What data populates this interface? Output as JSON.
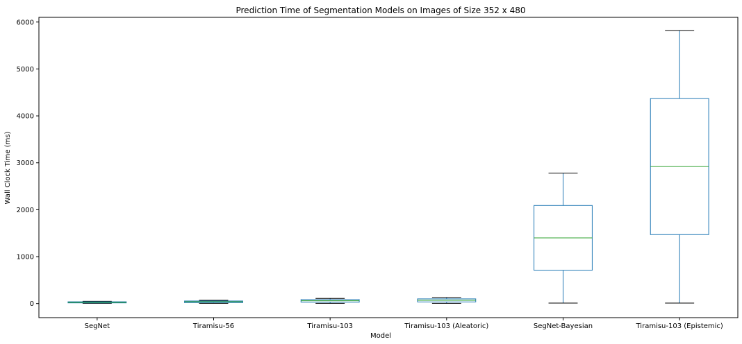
{
  "chart_data": {
    "type": "box",
    "title": "Prediction Time of Segmentation Models on Images of Size 352 x 480",
    "xlabel": "Model",
    "ylabel": "Wall Clock Time (ms)",
    "ylim": [
      -300,
      6100
    ],
    "yticks": [
      0,
      1000,
      2000,
      3000,
      4000,
      5000,
      6000
    ],
    "grid": false,
    "categories": [
      "SegNet",
      "Tiramisu-56",
      "Tiramisu-103",
      "Tiramisu-103 (Aleatoric)",
      "SegNet-Bayesian",
      "Tiramisu-103 (Epistemic)"
    ],
    "boxes": [
      {
        "whisker_low": 5,
        "q1": 15,
        "median": 25,
        "q3": 38,
        "whisker_high": 50
      },
      {
        "whisker_low": 5,
        "q1": 20,
        "median": 40,
        "q3": 55,
        "whisker_high": 70
      },
      {
        "whisker_low": 5,
        "q1": 30,
        "median": 60,
        "q3": 85,
        "whisker_high": 110
      },
      {
        "whisker_low": 5,
        "q1": 35,
        "median": 70,
        "q3": 100,
        "whisker_high": 130
      },
      {
        "whisker_low": 10,
        "q1": 710,
        "median": 1400,
        "q3": 2090,
        "whisker_high": 2780
      },
      {
        "whisker_low": 10,
        "q1": 1470,
        "median": 2920,
        "q3": 4370,
        "whisker_high": 5820
      }
    ],
    "colors": {
      "box": "#1f77b4",
      "median": "#2ca02c",
      "whisker_cap": "#000000",
      "axes": "#000000"
    }
  }
}
